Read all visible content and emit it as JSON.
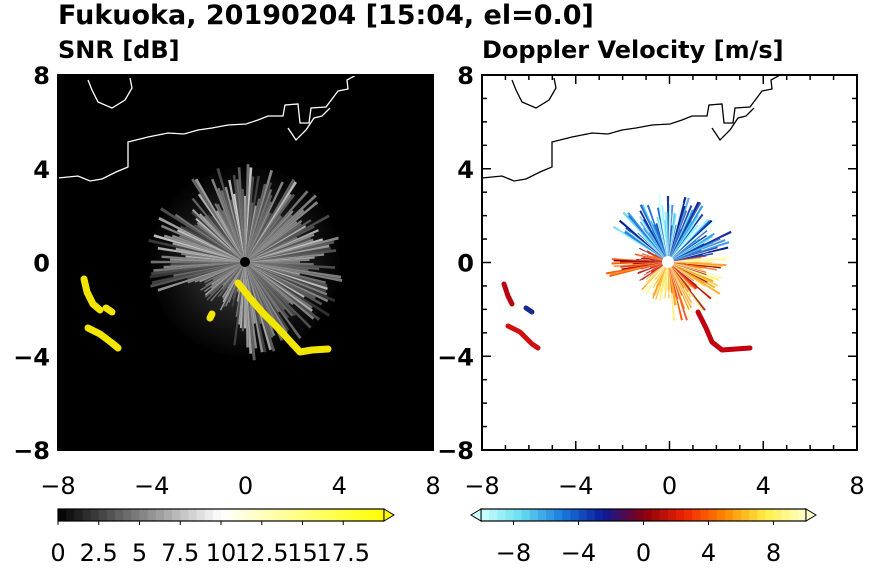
{
  "title": "Fukuoka, 20190204 [15:04, el=0.0]",
  "chart_data": [
    {
      "type": "heatmap",
      "title": "SNR [dB]",
      "x_ticks": [
        "−8",
        "−4",
        "0",
        "4",
        "8"
      ],
      "y_ticks": [
        "8",
        "4",
        "0",
        "−4",
        "−8"
      ],
      "x_values": [
        -8,
        -4,
        0,
        4,
        8
      ],
      "y_values": [
        8,
        4,
        0,
        -4,
        -8
      ],
      "xlim": [
        -8,
        8
      ],
      "ylim": [
        -8,
        8
      ],
      "background": "#000000",
      "colorbar": {
        "range": [
          0,
          20
        ],
        "tick_values": [
          0,
          2.5,
          5,
          7.5,
          10,
          12.5,
          15,
          17.5
        ],
        "tick_labels": [
          "0",
          "2.5",
          "5",
          "7.5",
          "10",
          "12.5",
          "15",
          "17.5"
        ],
        "extend": "max",
        "colors": [
          "#000000",
          "#ffffff",
          "#ffff00"
        ]
      }
    },
    {
      "type": "heatmap",
      "title": "Doppler Velocity [m/s]",
      "x_ticks": [
        "−8",
        "−4",
        "0",
        "4",
        "8"
      ],
      "y_ticks": [
        "8",
        "4",
        "0",
        "−4",
        "−8"
      ],
      "x_values": [
        -8,
        -4,
        0,
        4,
        8
      ],
      "y_values": [
        8,
        4,
        0,
        -4,
        -8
      ],
      "xlim": [
        -8,
        8
      ],
      "ylim": [
        -8,
        8
      ],
      "background": "#ffffff",
      "colorbar": {
        "range": [
          -10,
          10
        ],
        "tick_values": [
          -8,
          -4,
          0,
          4,
          8
        ],
        "tick_labels": [
          "−8",
          "−4",
          "0",
          "4",
          "8"
        ],
        "extend": "both",
        "colors": [
          "#cfffff",
          "#66ddee",
          "#1a7ae0",
          "#0a1a9a",
          "#880010",
          "#ee2200",
          "#ff8800",
          "#ffee44",
          "#ffffcc"
        ]
      }
    }
  ]
}
